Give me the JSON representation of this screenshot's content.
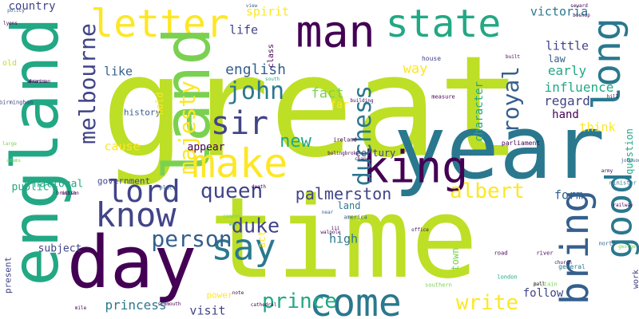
{
  "palette": {
    "lime": "#bddf26",
    "yellow": "#fde725",
    "green": "#7ad151",
    "teal": "#22a884",
    "cyan": "#2a788e",
    "blue": "#355f8d",
    "indigo": "#414487",
    "purple": "#440154"
  },
  "words": [
    {
      "text": "great",
      "color": "lime"
    },
    {
      "text": "time",
      "color": "lime"
    },
    {
      "text": "england",
      "color": "teal"
    },
    {
      "text": "year",
      "color": "cyan"
    },
    {
      "text": "day",
      "color": "purple"
    },
    {
      "text": "king",
      "color": "purple"
    },
    {
      "text": "man",
      "color": "purple"
    },
    {
      "text": "letter",
      "color": "yellow"
    },
    {
      "text": "land",
      "color": "green"
    },
    {
      "text": "state",
      "color": "teal"
    },
    {
      "text": "come",
      "color": "cyan"
    },
    {
      "text": "make",
      "color": "yellow"
    },
    {
      "text": "say",
      "color": "cyan"
    },
    {
      "text": "know",
      "color": "indigo"
    },
    {
      "text": "long",
      "color": "cyan"
    },
    {
      "text": "bring",
      "color": "blue"
    },
    {
      "text": "good",
      "color": "cyan"
    },
    {
      "text": "sir",
      "color": "indigo"
    },
    {
      "text": "lord",
      "color": "indigo"
    },
    {
      "text": "melbourne",
      "color": "indigo"
    },
    {
      "text": "majesty",
      "color": "yellow"
    },
    {
      "text": "duchess",
      "color": "cyan"
    },
    {
      "text": "royal",
      "color": "blue"
    },
    {
      "text": "person",
      "color": "blue"
    },
    {
      "text": "queen",
      "color": "indigo"
    },
    {
      "text": "john",
      "color": "cyan"
    },
    {
      "text": "duke",
      "color": "indigo"
    },
    {
      "text": "prince",
      "color": "teal"
    },
    {
      "text": "write",
      "color": "yellow"
    },
    {
      "text": "albert",
      "color": "yellow"
    },
    {
      "text": "palmerston",
      "color": "indigo"
    },
    {
      "text": "new",
      "color": "teal"
    },
    {
      "text": "english",
      "color": "blue"
    },
    {
      "text": "country",
      "color": "indigo"
    },
    {
      "text": "spirit",
      "color": "yellow"
    },
    {
      "text": "victoria",
      "color": "cyan"
    },
    {
      "text": "little",
      "color": "indigo"
    },
    {
      "text": "life",
      "color": "indigo"
    },
    {
      "text": "like",
      "color": "blue"
    },
    {
      "text": "way",
      "color": "yellow"
    },
    {
      "text": "early",
      "color": "teal"
    },
    {
      "text": "influence",
      "color": "teal"
    },
    {
      "text": "fact",
      "color": "green"
    },
    {
      "text": "regard",
      "color": "indigo"
    },
    {
      "text": "hand",
      "color": "purple"
    },
    {
      "text": "character",
      "color": "teal"
    },
    {
      "text": "law",
      "color": "blue"
    },
    {
      "text": "think",
      "color": "yellow"
    },
    {
      "text": "form",
      "color": "blue"
    },
    {
      "text": "public",
      "color": "teal"
    },
    {
      "text": "cause",
      "color": "yellow"
    },
    {
      "text": "appear",
      "color": "purple"
    },
    {
      "text": "history",
      "color": "blue"
    },
    {
      "text": "hold",
      "color": "yellow"
    },
    {
      "text": "far",
      "color": "yellow"
    },
    {
      "text": "government",
      "color": "indigo"
    },
    {
      "text": "national",
      "color": "teal"
    },
    {
      "text": "subject",
      "color": "indigo"
    },
    {
      "text": "present",
      "color": "indigo"
    },
    {
      "text": "high",
      "color": "cyan"
    },
    {
      "text": "follow",
      "color": "indigo"
    },
    {
      "text": "princess",
      "color": "cyan"
    },
    {
      "text": "visit",
      "color": "indigo"
    },
    {
      "text": "century",
      "color": "indigo"
    },
    {
      "text": "question",
      "color": "teal"
    },
    {
      "text": "act",
      "color": "yellow"
    },
    {
      "text": "power",
      "color": "yellow"
    },
    {
      "text": "old",
      "color": "lime"
    },
    {
      "text": "land",
      "color": "cyan"
    },
    {
      "text": "ireland",
      "color": "purple"
    },
    {
      "text": "parliament",
      "color": "purple"
    },
    {
      "text": "minister",
      "color": "cyan"
    },
    {
      "text": "general",
      "color": "cyan"
    },
    {
      "text": "work",
      "color": "indigo"
    },
    {
      "text": "house",
      "color": "indigo"
    },
    {
      "text": "measure",
      "color": "purple"
    },
    {
      "text": "class",
      "color": "purple"
    },
    {
      "text": "policy",
      "color": "blue"
    },
    {
      "text": "birmingham",
      "color": "indigo"
    },
    {
      "text": "british",
      "color": "purple"
    },
    {
      "text": "motion",
      "color": "purple"
    },
    {
      "text": "france",
      "color": "purple"
    },
    {
      "text": "america",
      "color": "blue"
    },
    {
      "text": "london",
      "color": "teal"
    },
    {
      "text": "road",
      "color": "purple"
    },
    {
      "text": "river",
      "color": "purple"
    },
    {
      "text": "north",
      "color": "blue"
    },
    {
      "text": "town",
      "color": "green"
    },
    {
      "text": "place",
      "color": "blue"
    },
    {
      "text": "near",
      "color": "blue"
    },
    {
      "text": "walpole",
      "color": "purple"
    },
    {
      "text": "lyons",
      "color": "purple"
    },
    {
      "text": "american",
      "color": "purple"
    },
    {
      "text": "johnson",
      "color": "blue"
    },
    {
      "text": "church",
      "color": "purple"
    },
    {
      "text": "bolingbroke",
      "color": "purple"
    },
    {
      "text": "chapel",
      "color": "purple"
    },
    {
      "text": "railway",
      "color": "purple"
    },
    {
      "text": "george",
      "color": "green"
    },
    {
      "text": "view",
      "color": "blue"
    },
    {
      "text": "seward",
      "color": "purple"
    },
    {
      "text": "bishop",
      "color": "purple"
    },
    {
      "text": "death",
      "color": "purple"
    },
    {
      "text": "south",
      "color": "teal"
    },
    {
      "text": "building",
      "color": "purple"
    },
    {
      "text": "office",
      "color": "purple"
    },
    {
      "text": "note",
      "color": "purple"
    },
    {
      "text": "mile",
      "color": "purple"
    },
    {
      "text": "cathedral",
      "color": "purple"
    },
    {
      "text": "southern",
      "color": "green"
    },
    {
      "text": "britain",
      "color": "green"
    },
    {
      "text": "hill",
      "color": "purple"
    },
    {
      "text": "army",
      "color": "purple"
    },
    {
      "text": "iii",
      "color": "purple"
    },
    {
      "text": "pall",
      "color": "purple"
    },
    {
      "text": "adams",
      "color": "green"
    },
    {
      "text": "large",
      "color": "green"
    },
    {
      "text": "common",
      "color": "green"
    },
    {
      "text": "sidmouth",
      "color": "purple"
    },
    {
      "text": "war",
      "color": "teal"
    },
    {
      "text": "built",
      "color": "purple"
    }
  ]
}
